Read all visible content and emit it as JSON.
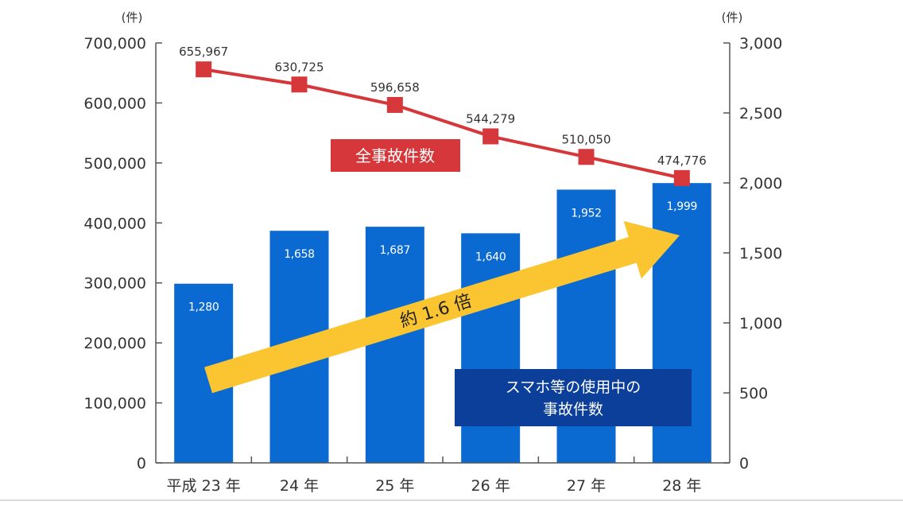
{
  "chart_data": {
    "type": "bar+line",
    "unit_left": "(件)",
    "unit_right": "(件)",
    "categories": [
      "平成 23 年",
      "24 年",
      "25 年",
      "26 年",
      "27 年",
      "28 年"
    ],
    "left_axis": {
      "range": [
        0,
        700000
      ],
      "ticks": [
        0,
        100000,
        200000,
        300000,
        400000,
        500000,
        600000,
        700000
      ],
      "tick_labels": [
        "0",
        "100,000",
        "200,000",
        "300,000",
        "400,000",
        "500,000",
        "600,000",
        "700,000"
      ]
    },
    "right_axis": {
      "range": [
        0,
        3000
      ],
      "ticks": [
        0,
        500,
        1000,
        1500,
        2000,
        2500,
        3000
      ],
      "tick_labels": [
        "0",
        "500",
        "1,000",
        "1,500",
        "2,000",
        "2,500",
        "3,000"
      ]
    },
    "bars": {
      "axis": "right",
      "name": "スマホ等の使用中の\n事故件数",
      "values": [
        1280,
        1658,
        1687,
        1640,
        1952,
        1999
      ],
      "labels": [
        "1,280",
        "1,658",
        "1,687",
        "1,640",
        "1,952",
        "1,999"
      ],
      "color": "#0a6ad2"
    },
    "line": {
      "axis": "left",
      "name": "全事故件数",
      "values": [
        655967,
        630725,
        596658,
        544279,
        510050,
        474776
      ],
      "labels": [
        "655,967",
        "630,725",
        "596,658",
        "544,279",
        "510,050",
        "474,776"
      ],
      "color": "#d6373a"
    },
    "annotation": {
      "text": "約 1.6 倍",
      "color": "#fbc531"
    },
    "legend_line_color": "#d6373a",
    "legend_bar_color": "#0b3f9a"
  }
}
